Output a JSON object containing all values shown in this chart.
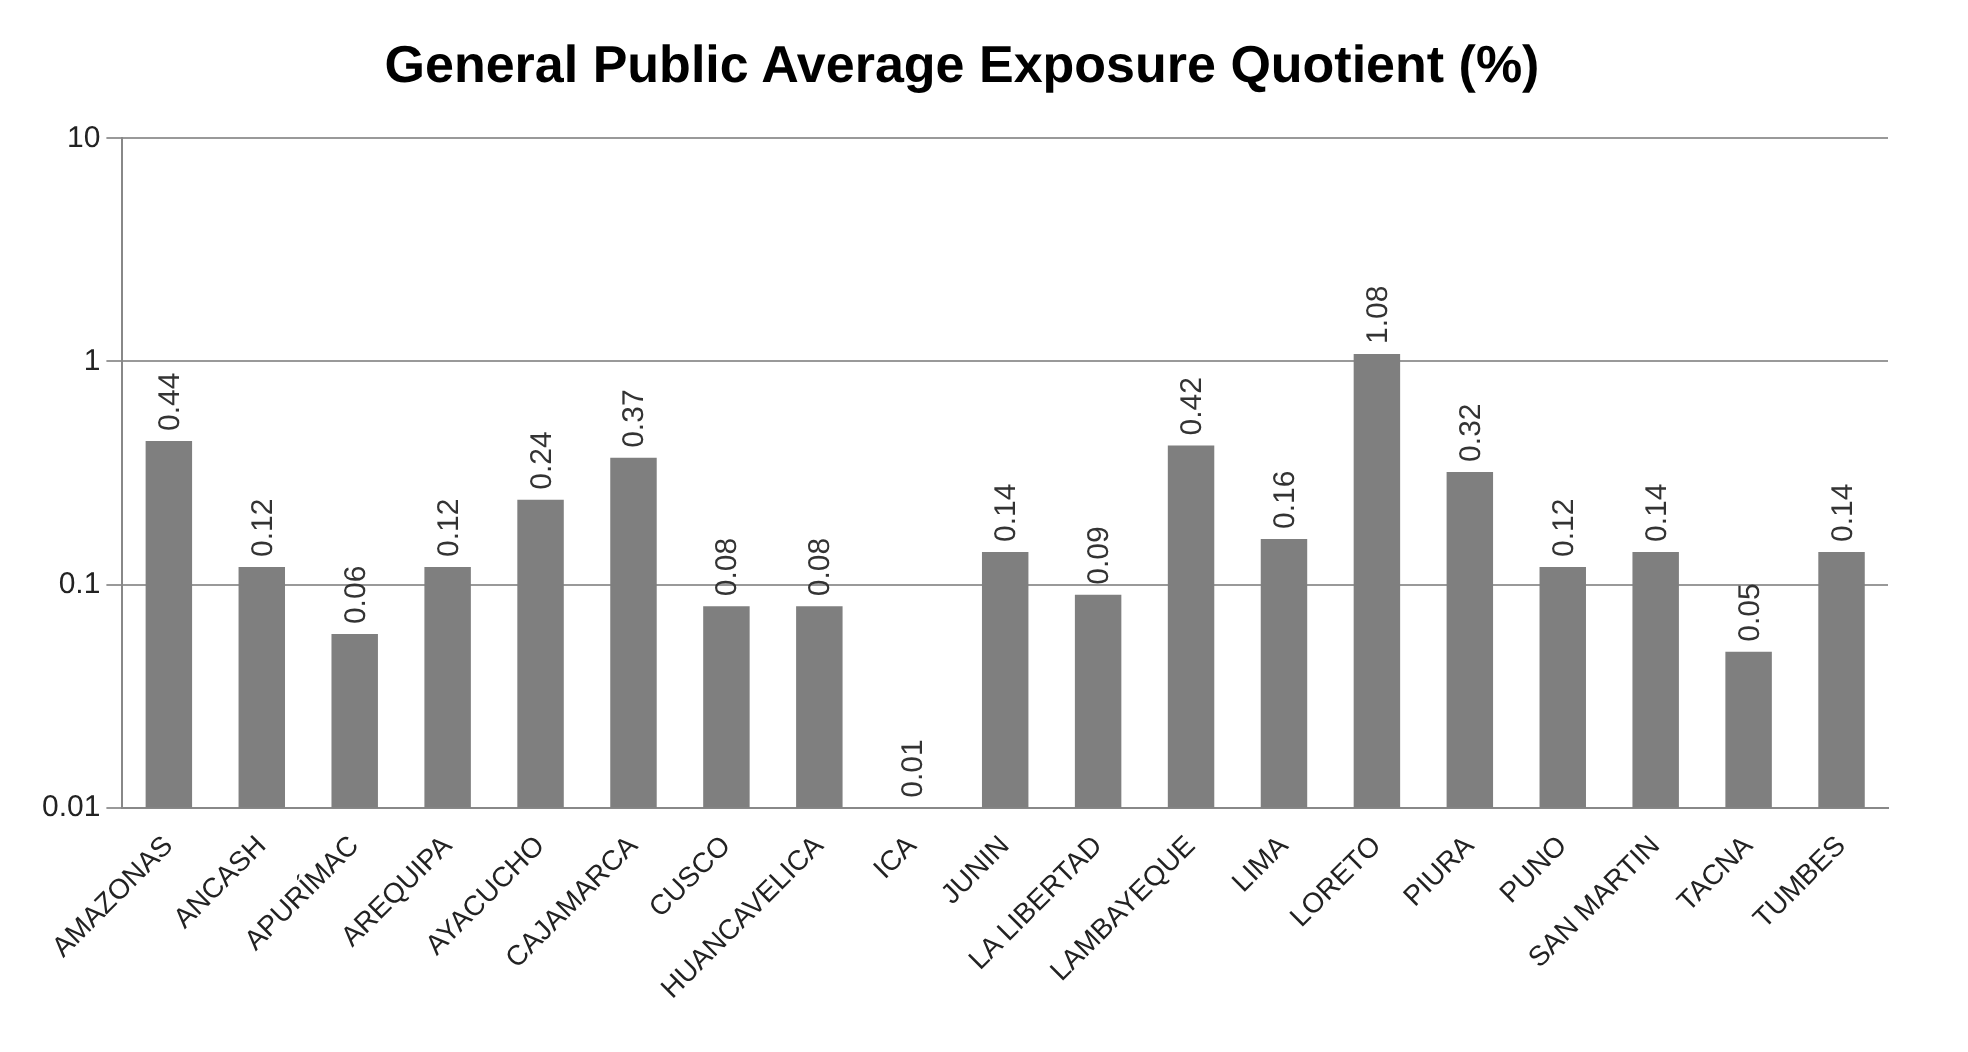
{
  "chart_data": {
    "type": "bar",
    "title": "General Public Average Exposure Quotient (%)",
    "categories": [
      "AMAZONAS",
      "ANCASH",
      "APURÍMAC",
      "AREQUIPA",
      "AYACUCHO",
      "CAJAMARCA",
      "CUSCO",
      "HUANCAVELICA",
      "ICA",
      "JUNIN",
      "LA LIBERTAD",
      "LAMBAYEQUE",
      "LIMA",
      "LORETO",
      "PIURA",
      "PUNO",
      "SAN MARTIN",
      "TACNA",
      "TUMBES"
    ],
    "values": [
      0.44,
      0.12,
      0.06,
      0.12,
      0.24,
      0.37,
      0.08,
      0.08,
      0.01,
      0.14,
      0.09,
      0.42,
      0.16,
      1.08,
      0.32,
      0.12,
      0.14,
      0.05,
      0.14
    ],
    "color": "#7f7f7f",
    "log": true,
    "ylim": [
      0.01,
      10
    ],
    "yticks": [
      0.01,
      0.1,
      1,
      10
    ],
    "grid": "y",
    "data_labels": true,
    "legend": false
  }
}
